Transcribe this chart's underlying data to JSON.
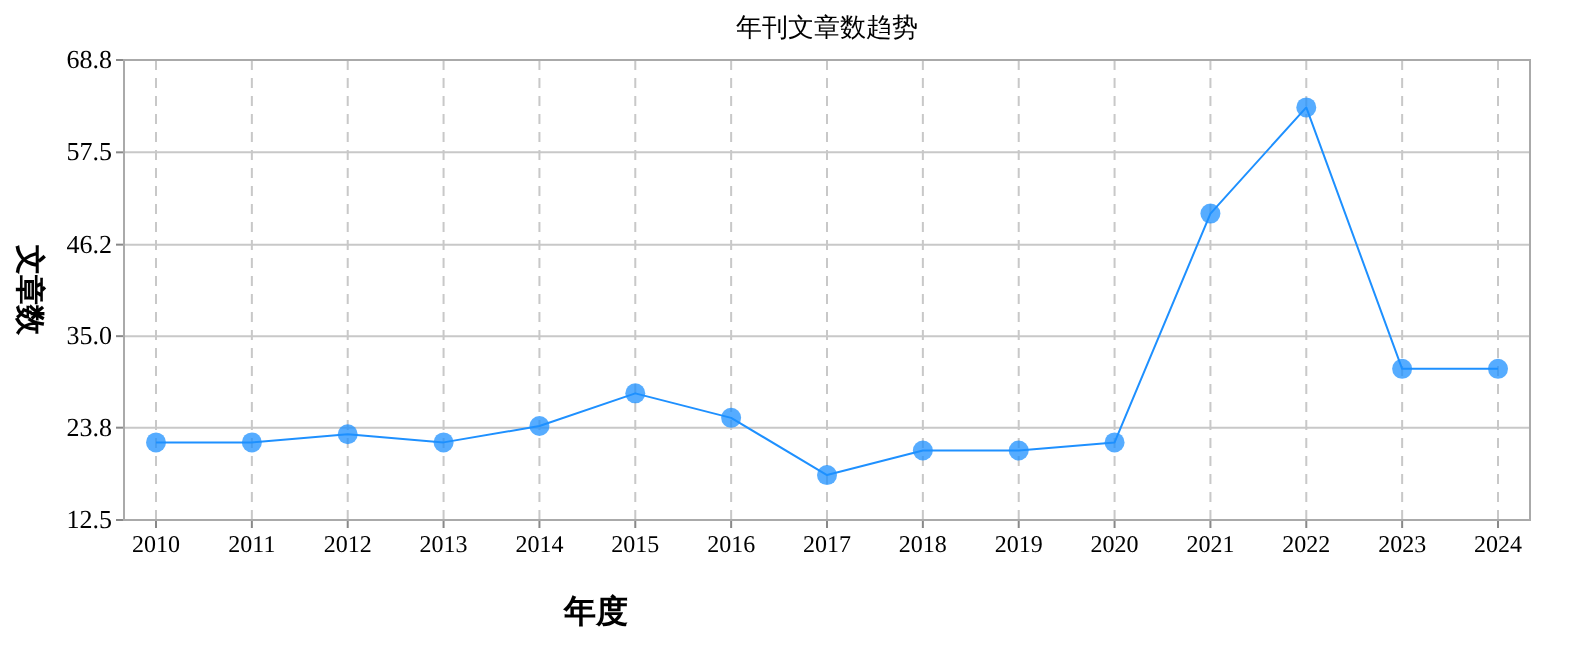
{
  "chart_data": {
    "type": "line",
    "title": "年刊文章数趋势",
    "xlabel": "年度",
    "ylabel": "文章数",
    "categories": [
      "2010",
      "2011",
      "2012",
      "2013",
      "2014",
      "2015",
      "2016",
      "2017",
      "2018",
      "2019",
      "2020",
      "2021",
      "2022",
      "2023",
      "2024"
    ],
    "series": [
      {
        "color": "#1e90ff",
        "values": [
          22,
          22,
          23,
          22,
          24,
          28,
          25,
          18,
          21,
          21,
          22,
          50,
          63,
          31,
          31
        ]
      }
    ],
    "ylim": [
      12.5,
      68.8
    ],
    "yticks": [
      12.5,
      23.8,
      {
        "value": 35,
        "label": "35.0"
      },
      46.2,
      57.5,
      68.8
    ],
    "grid": true,
    "marker": "circle",
    "line_style": "solid"
  }
}
